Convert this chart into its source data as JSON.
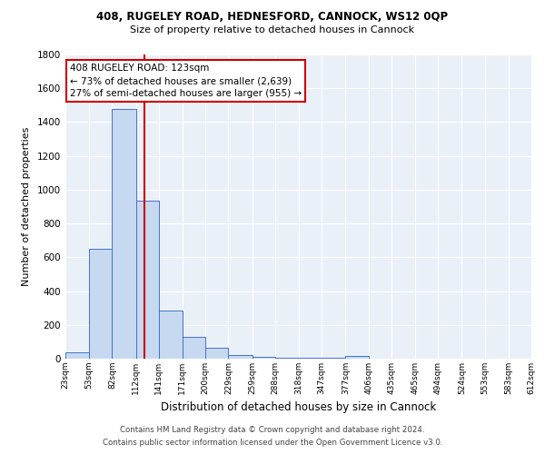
{
  "title1": "408, RUGELEY ROAD, HEDNESFORD, CANNOCK, WS12 0QP",
  "title2": "Size of property relative to detached houses in Cannock",
  "xlabel": "Distribution of detached houses by size in Cannock",
  "ylabel": "Number of detached properties",
  "footnote1": "Contains HM Land Registry data © Crown copyright and database right 2024.",
  "footnote2": "Contains public sector information licensed under the Open Government Licence v3.0.",
  "bin_edges": [
    23,
    53,
    82,
    112,
    141,
    171,
    200,
    229,
    259,
    288,
    318,
    347,
    377,
    406,
    435,
    465,
    494,
    524,
    553,
    583,
    612
  ],
  "bin_labels": [
    "23sqm",
    "53sqm",
    "82sqm",
    "112sqm",
    "141sqm",
    "171sqm",
    "200sqm",
    "229sqm",
    "259sqm",
    "288sqm",
    "318sqm",
    "347sqm",
    "377sqm",
    "406sqm",
    "435sqm",
    "465sqm",
    "494sqm",
    "524sqm",
    "553sqm",
    "583sqm",
    "612sqm"
  ],
  "bar_heights": [
    40,
    650,
    1480,
    935,
    285,
    130,
    62,
    22,
    10,
    8,
    5,
    4,
    15,
    2,
    0,
    0,
    0,
    0,
    0,
    0
  ],
  "bar_color": "#c6d9f1",
  "bar_edge_color": "#4472c4",
  "vline_x": 123,
  "vline_color": "#cc0000",
  "annotation_line1": "408 RUGELEY ROAD: 123sqm",
  "annotation_line2": "← 73% of detached houses are smaller (2,639)",
  "annotation_line3": "27% of semi-detached houses are larger (955) →",
  "annotation_box_edge_color": "#cc0000",
  "ylim": [
    0,
    1800
  ],
  "bg_color": "#eaf0f8"
}
